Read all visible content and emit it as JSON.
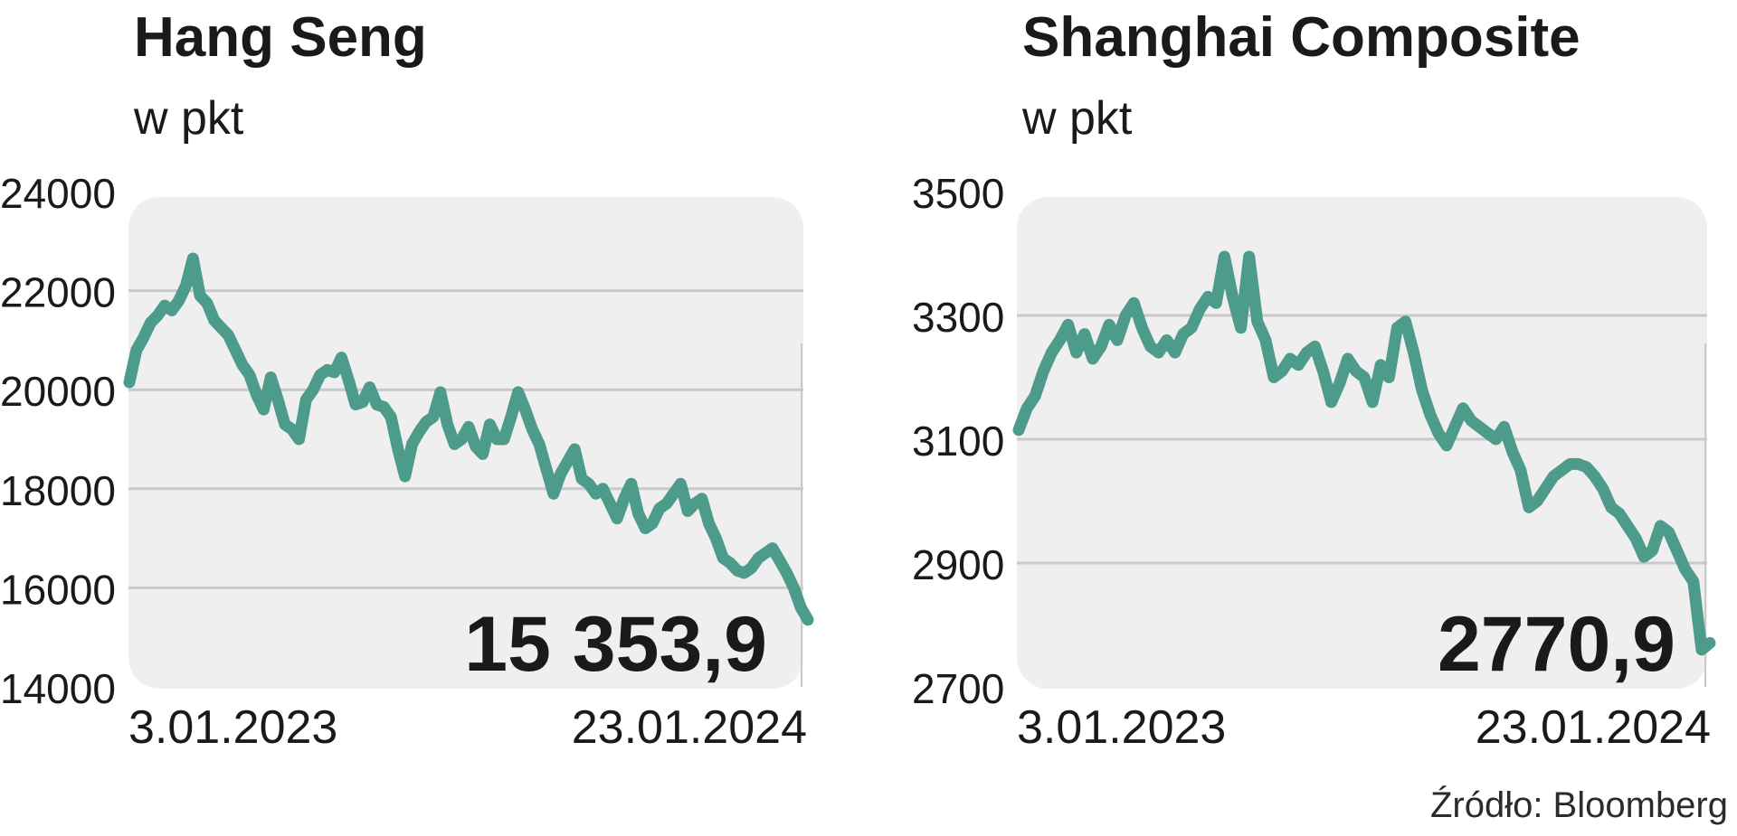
{
  "colors": {
    "line": "#4d9b8a",
    "panel": "#efefef",
    "grid": "#c9c9c9",
    "text": "#1a1a1a"
  },
  "source": "Źródło: Bloomberg",
  "chart_data": [
    {
      "type": "line",
      "title": "Hang Seng",
      "subtitle": "w pkt",
      "ylim": [
        14000,
        24000
      ],
      "yticks": [
        "24000",
        "22000",
        "20000",
        "18000",
        "16000",
        "14000"
      ],
      "ytick_values": [
        24000,
        22000,
        20000,
        18000,
        16000,
        14000
      ],
      "x_start_label": "3.01.2023",
      "x_end_label": "23.01.2024",
      "last_value_label": "15 353,9",
      "grid": true,
      "series": [
        {
          "values": [
            20150,
            20800,
            21050,
            21350,
            21500,
            21700,
            21600,
            21800,
            22100,
            22650,
            21900,
            21750,
            21400,
            21250,
            21100,
            20800,
            20500,
            20300,
            19900,
            19600,
            20250,
            19800,
            19300,
            19200,
            19000,
            19800,
            20000,
            20300,
            20400,
            20350,
            20650,
            20200,
            19700,
            19750,
            20050,
            19700,
            19650,
            19450,
            18800,
            18250,
            18900,
            19150,
            19350,
            19450,
            19950,
            19300,
            18900,
            19000,
            19250,
            18850,
            18700,
            19300,
            19000,
            19000,
            19450,
            19950,
            19600,
            19200,
            18900,
            18400,
            17900,
            18300,
            18550,
            18800,
            18200,
            18100,
            17900,
            18000,
            17700,
            17400,
            17800,
            18100,
            17500,
            17200,
            17300,
            17600,
            17700,
            17900,
            18100,
            17550,
            17700,
            17800,
            17300,
            17000,
            16600,
            16500,
            16350,
            16300,
            16400,
            16600,
            16700,
            16800,
            16550,
            16300,
            16000,
            15600,
            15353.9
          ]
        }
      ]
    },
    {
      "type": "line",
      "title": "Shanghai Composite",
      "subtitle": "w pkt",
      "ylim": [
        2700,
        3500
      ],
      "yticks": [
        "3500",
        "3300",
        "3100",
        "2900",
        "2700"
      ],
      "ytick_values": [
        3500,
        3300,
        3100,
        2900,
        2700
      ],
      "x_start_label": "3.01.2023",
      "x_end_label": "23.01.2024",
      "last_value_label": "2770,9",
      "grid": true,
      "series": [
        {
          "values": [
            3115,
            3150,
            3170,
            3210,
            3240,
            3260,
            3285,
            3240,
            3270,
            3230,
            3250,
            3285,
            3260,
            3300,
            3320,
            3280,
            3250,
            3240,
            3260,
            3240,
            3270,
            3280,
            3310,
            3330,
            3320,
            3395,
            3330,
            3280,
            3395,
            3290,
            3260,
            3200,
            3210,
            3230,
            3220,
            3240,
            3250,
            3210,
            3160,
            3190,
            3230,
            3210,
            3200,
            3160,
            3220,
            3200,
            3280,
            3290,
            3240,
            3180,
            3140,
            3110,
            3090,
            3120,
            3150,
            3130,
            3120,
            3110,
            3100,
            3120,
            3080,
            3050,
            2990,
            3000,
            3020,
            3040,
            3050,
            3060,
            3060,
            3055,
            3040,
            3020,
            2990,
            2980,
            2960,
            2940,
            2910,
            2920,
            2960,
            2950,
            2920,
            2890,
            2870,
            2760,
            2770.9
          ]
        }
      ]
    }
  ]
}
